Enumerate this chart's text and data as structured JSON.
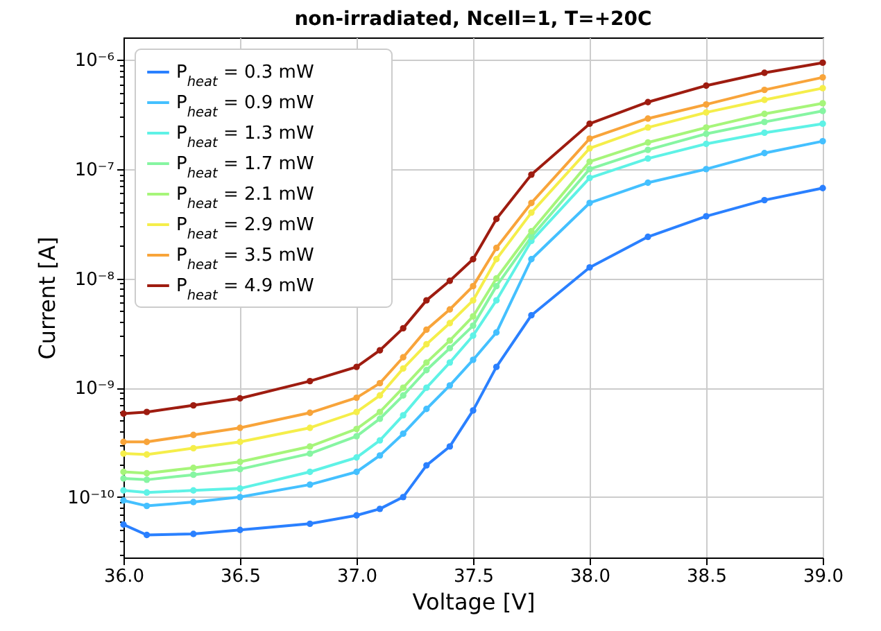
{
  "chart_data": {
    "type": "line",
    "title": "non-irradiated, Ncell=1, T=+20C",
    "xlabel": "Voltage [V]",
    "ylabel": "Current [A]",
    "x": [
      36.0,
      36.1,
      36.3,
      36.5,
      36.8,
      37.0,
      37.1,
      37.2,
      37.3,
      37.4,
      37.5,
      37.6,
      37.75,
      38.0,
      38.25,
      38.5,
      38.75,
      39.0
    ],
    "series": [
      {
        "name": "P$_{heat}$ = 0.3 mW",
        "color": "#2a80ff",
        "values": [
          5.6e-11,
          4.5e-11,
          4.6e-11,
          5e-11,
          5.7e-11,
          6.8e-11,
          7.8e-11,
          1e-10,
          1.95e-10,
          2.9e-10,
          6.2e-10,
          1.55e-09,
          4.6e-09,
          1.26e-08,
          2.4e-08,
          3.7e-08,
          5.2e-08,
          6.7e-08
        ]
      },
      {
        "name": "P$_{heat}$ = 0.9 mW",
        "color": "#44c0ff",
        "values": [
          9.3e-11,
          8.3e-11,
          9e-11,
          1e-10,
          1.3e-10,
          1.7e-10,
          2.4e-10,
          3.8e-10,
          6.4e-10,
          1.05e-09,
          1.8e-09,
          3.2e-09,
          1.5e-08,
          4.9e-08,
          7.5e-08,
          1e-07,
          1.4e-07,
          1.8e-07
        ]
      },
      {
        "name": "P$_{heat}$ = 1.3 mW",
        "color": "#5ef2e6",
        "values": [
          1.15e-10,
          1.1e-10,
          1.15e-10,
          1.2e-10,
          1.7e-10,
          2.3e-10,
          3.3e-10,
          5.6e-10,
          1e-09,
          1.7e-09,
          3e-09,
          6.3e-09,
          2.2e-08,
          8.3e-08,
          1.25e-07,
          1.7e-07,
          2.15e-07,
          2.6e-07
        ]
      },
      {
        "name": "P$_{heat}$ = 1.7 mW",
        "color": "#86f5a2",
        "values": [
          1.48e-10,
          1.44e-10,
          1.6e-10,
          1.8e-10,
          2.5e-10,
          3.6e-10,
          5.2e-10,
          8.5e-10,
          1.45e-09,
          2.3e-09,
          3.7e-09,
          8.5e-09,
          2.4e-08,
          1e-07,
          1.5e-07,
          2.1e-07,
          2.7e-07,
          3.4e-07
        ]
      },
      {
        "name": "P$_{heat}$ = 2.1 mW",
        "color": "#a6f57a",
        "values": [
          1.7e-10,
          1.65e-10,
          1.85e-10,
          2.1e-10,
          2.9e-10,
          4.2e-10,
          6e-10,
          1e-09,
          1.7e-09,
          2.7e-09,
          4.5e-09,
          1e-08,
          2.7e-08,
          1.17e-07,
          1.75e-07,
          2.4e-07,
          3.2e-07,
          4e-07
        ]
      },
      {
        "name": "P$_{heat}$ = 2.9 mW",
        "color": "#f5ee4a",
        "values": [
          2.5e-10,
          2.45e-10,
          2.8e-10,
          3.2e-10,
          4.3e-10,
          6e-10,
          8.5e-10,
          1.5e-09,
          2.5e-09,
          3.9e-09,
          6.3e-09,
          1.5e-08,
          4e-08,
          1.55e-07,
          2.4e-07,
          3.3e-07,
          4.3e-07,
          5.5e-07
        ]
      },
      {
        "name": "P$_{heat}$ = 3.5 mW",
        "color": "#f8a43a",
        "values": [
          3.2e-10,
          3.2e-10,
          3.7e-10,
          4.3e-10,
          5.9e-10,
          8.1e-10,
          1.1e-09,
          1.9e-09,
          3.4e-09,
          5.2e-09,
          8.5e-09,
          1.9e-08,
          4.9e-08,
          1.9e-07,
          2.9e-07,
          3.9e-07,
          5.3e-07,
          6.9e-07
        ]
      },
      {
        "name": "P$_{heat}$ = 4.9 mW",
        "color": "#9e1c10",
        "values": [
          5.8e-10,
          6e-10,
          6.9e-10,
          8e-10,
          1.15e-09,
          1.55e-09,
          2.2e-09,
          3.5e-09,
          6.3e-09,
          9.5e-09,
          1.5e-08,
          3.5e-08,
          8.9e-08,
          2.6e-07,
          4.1e-07,
          5.8e-07,
          7.6e-07,
          9.4e-07
        ]
      }
    ],
    "xlim": [
      36.0,
      39.0
    ],
    "xticks": [
      {
        "value": 36,
        "label": "36.0"
      },
      {
        "value": 36.5,
        "label": "36.5"
      },
      {
        "value": 37,
        "label": "37.0"
      },
      {
        "value": 37.5,
        "label": "37.5"
      },
      {
        "value": 38,
        "label": "38.0"
      },
      {
        "value": 38.5,
        "label": "38.5"
      },
      {
        "value": 39,
        "label": "39.0"
      }
    ],
    "ylim": [
      2.8e-11,
      1.6e-06
    ],
    "yticks": [
      {
        "value": 3e-11,
        "label": null
      },
      {
        "value": 4e-11,
        "label": null
      },
      {
        "value": 5e-11,
        "label": null
      },
      {
        "value": 6e-11,
        "label": null
      },
      {
        "value": 7e-11,
        "label": null
      },
      {
        "value": 8e-11,
        "label": null
      },
      {
        "value": 9e-11,
        "label": null
      },
      {
        "value": 1e-10,
        "label": "10⁻¹⁰"
      },
      {
        "value": 2e-10,
        "label": null
      },
      {
        "value": 3e-10,
        "label": null
      },
      {
        "value": 4e-10,
        "label": null
      },
      {
        "value": 5e-10,
        "label": null
      },
      {
        "value": 6e-10,
        "label": null
      },
      {
        "value": 7e-10,
        "label": null
      },
      {
        "value": 8e-10,
        "label": null
      },
      {
        "value": 9e-10,
        "label": null
      },
      {
        "value": 1e-09,
        "label": "10⁻⁹"
      },
      {
        "value": 2e-09,
        "label": null
      },
      {
        "value": 3e-09,
        "label": null
      },
      {
        "value": 4e-09,
        "label": null
      },
      {
        "value": 5e-09,
        "label": null
      },
      {
        "value": 6e-09,
        "label": null
      },
      {
        "value": 7e-09,
        "label": null
      },
      {
        "value": 8e-09,
        "label": null
      },
      {
        "value": 9e-09,
        "label": null
      },
      {
        "value": 1e-08,
        "label": "10⁻⁸"
      },
      {
        "value": 2e-08,
        "label": null
      },
      {
        "value": 3e-08,
        "label": null
      },
      {
        "value": 4e-08,
        "label": null
      },
      {
        "value": 5e-08,
        "label": null
      },
      {
        "value": 6e-08,
        "label": null
      },
      {
        "value": 7e-08,
        "label": null
      },
      {
        "value": 8e-08,
        "label": null
      },
      {
        "value": 9e-08,
        "label": null
      },
      {
        "value": 1e-07,
        "label": "10⁻⁷"
      },
      {
        "value": 2e-07,
        "label": null
      },
      {
        "value": 3e-07,
        "label": null
      },
      {
        "value": 4e-07,
        "label": null
      },
      {
        "value": 5e-07,
        "label": null
      },
      {
        "value": 6e-07,
        "label": null
      },
      {
        "value": 7e-07,
        "label": null
      },
      {
        "value": 8e-07,
        "label": null
      },
      {
        "value": 9e-07,
        "label": null
      },
      {
        "value": 1e-06,
        "label": "10⁻⁶"
      }
    ],
    "log": "y",
    "grid": true,
    "legend": "top left",
    "marker": "circle",
    "line_style": "solid"
  }
}
